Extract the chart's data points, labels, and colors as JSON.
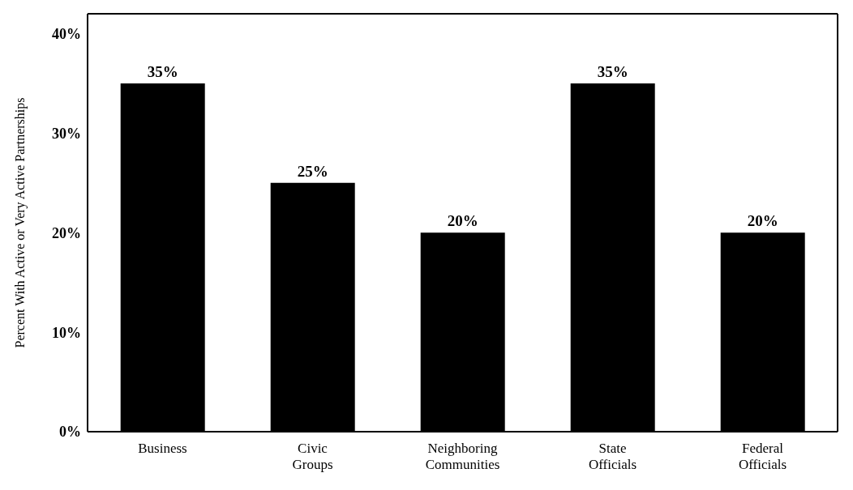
{
  "chart_data": {
    "type": "bar",
    "ylabel": "Percent With Active or Very Active Partnerships",
    "categories": [
      "Business",
      "Civic Groups",
      "Neighboring Communities",
      "State Officials",
      "Federal Officials"
    ],
    "values": [
      35,
      25,
      20,
      35,
      20
    ],
    "value_labels": [
      "35%",
      "25%",
      "20%",
      "35%",
      "20%"
    ],
    "color": "#000000",
    "ylim": [
      0,
      42
    ],
    "yticks": [
      {
        "value": 0,
        "label": "0%"
      },
      {
        "value": 10,
        "label": "10%"
      },
      {
        "value": 20,
        "label": "20%"
      },
      {
        "value": 30,
        "label": "30%"
      },
      {
        "value": 40,
        "label": "40%"
      }
    ],
    "grid": false
  }
}
